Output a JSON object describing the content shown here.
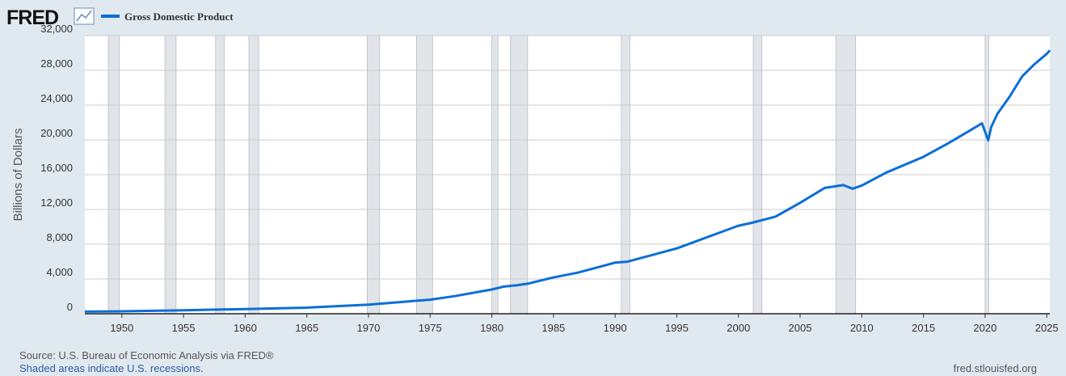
{
  "chart_data": {
    "type": "line",
    "logo": "FRED",
    "ylabel": "Billions of Dollars",
    "source": "Source: U.S. Bureau of Economic Analysis via FRED®",
    "note": "Shaded areas indicate U.S. recessions.",
    "site": "fred.stlouisfed.org",
    "series": [
      {
        "name": "Gross Domestic Product",
        "color": "#0b6ed8",
        "x": [
          1947,
          1950,
          1955,
          1960,
          1965,
          1970,
          1975,
          1977,
          1980,
          1981,
          1982,
          1983,
          1985,
          1987,
          1990,
          1991,
          1995,
          2000,
          2001,
          2003,
          2005,
          2007,
          2008.5,
          2009.25,
          2010,
          2012,
          2015,
          2017,
          2019.75,
          2020.25,
          2020.5,
          2021,
          2022,
          2023,
          2024,
          2025,
          2025.25
        ],
        "values": [
          243,
          280,
          400,
          540,
          700,
          1050,
          1620,
          2030,
          2790,
          3130,
          3270,
          3480,
          4180,
          4740,
          5880,
          5990,
          7520,
          10130,
          10430,
          11170,
          12760,
          14480,
          14800,
          14380,
          14750,
          16250,
          18050,
          19600,
          21900,
          19950,
          21500,
          23000,
          25000,
          27300,
          28700,
          29900,
          30300
        ]
      }
    ],
    "recessions": [
      [
        1948.9,
        1949.8
      ],
      [
        1953.5,
        1954.4
      ],
      [
        1957.6,
        1958.3
      ],
      [
        1960.3,
        1961.1
      ],
      [
        1969.9,
        1970.9
      ],
      [
        1973.9,
        1975.2
      ],
      [
        1980.0,
        1980.5
      ],
      [
        1981.5,
        1982.9
      ],
      [
        1990.5,
        1991.2
      ],
      [
        2001.2,
        2001.9
      ],
      [
        2007.9,
        2009.5
      ],
      [
        2020.0,
        2020.3
      ]
    ],
    "xlim": [
      1947,
      2025.25
    ],
    "xticks": [
      1950,
      1955,
      1960,
      1965,
      1970,
      1975,
      1980,
      1985,
      1990,
      1995,
      2000,
      2005,
      2010,
      2015,
      2020,
      2025
    ],
    "ylim": [
      0,
      32000
    ],
    "yticks": [
      0,
      {
        "value": 4000,
        "label": "4,000"
      },
      {
        "value": 8000,
        "label": "8,000"
      },
      {
        "value": 12000,
        "label": "12,000"
      },
      {
        "value": 16000,
        "label": "16,000"
      },
      {
        "value": 20000,
        "label": "20,000"
      },
      {
        "value": 24000,
        "label": "24,000"
      },
      {
        "value": 28000,
        "label": "28,000"
      },
      {
        "value": 32000,
        "label": "32,000"
      }
    ],
    "grid": true
  }
}
